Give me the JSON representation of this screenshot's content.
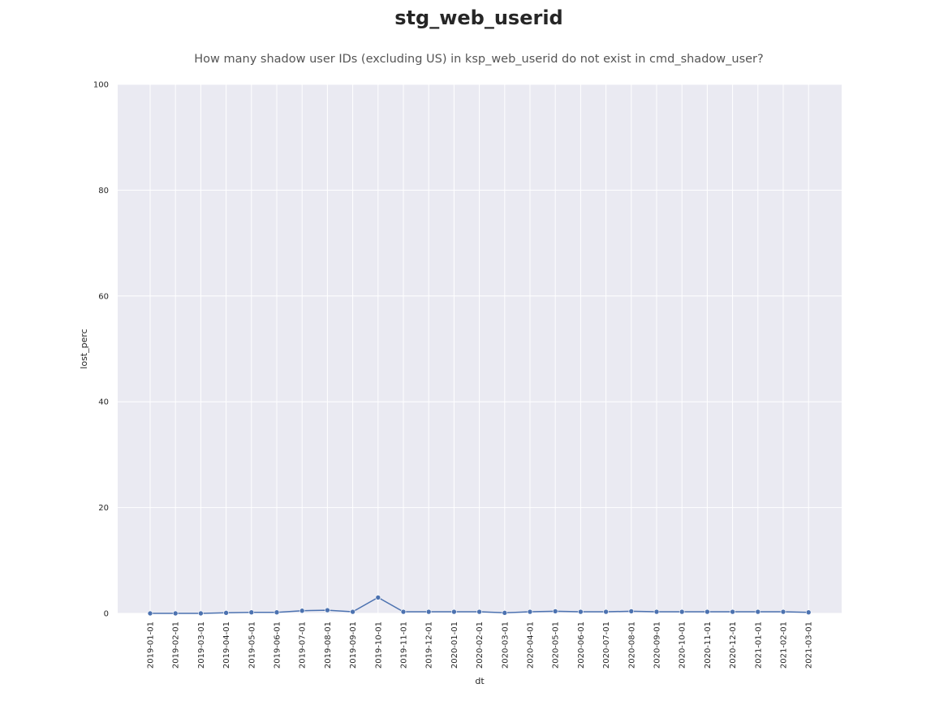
{
  "chart_data": {
    "type": "line",
    "title": "stg_web_userid",
    "subtitle": "How many shadow user IDs (excluding US) in ksp_web_userid do not exist in cmd_shadow_user?",
    "xlabel": "dt",
    "ylabel": "lost_perc",
    "ylim": [
      0,
      100
    ],
    "yticks": [
      0,
      20,
      40,
      60,
      80,
      100
    ],
    "grid": true,
    "legend": "none",
    "x": [
      "2019-01-01",
      "2019-02-01",
      "2019-03-01",
      "2019-04-01",
      "2019-05-01",
      "2019-06-01",
      "2019-07-01",
      "2019-08-01",
      "2019-09-01",
      "2019-10-01",
      "2019-11-01",
      "2019-12-01",
      "2020-01-01",
      "2020-02-01",
      "2020-03-01",
      "2020-04-01",
      "2020-05-01",
      "2020-06-01",
      "2020-07-01",
      "2020-08-01",
      "2020-09-01",
      "2020-10-01",
      "2020-11-01",
      "2020-12-01",
      "2021-01-01",
      "2021-02-01",
      "2021-03-01"
    ],
    "series": [
      {
        "color": "#4c72b0",
        "values": [
          0.0,
          0.0,
          0.0,
          0.1,
          0.2,
          0.2,
          0.5,
          0.6,
          0.3,
          3.0,
          0.3,
          0.3,
          0.3,
          0.3,
          0.1,
          0.3,
          0.4,
          0.3,
          0.3,
          0.4,
          0.3,
          0.3,
          0.3,
          0.3,
          0.3,
          0.3,
          0.2
        ]
      }
    ],
    "colors": {
      "plot_background": "#eaeaf2",
      "grid": "#ffffff"
    }
  }
}
